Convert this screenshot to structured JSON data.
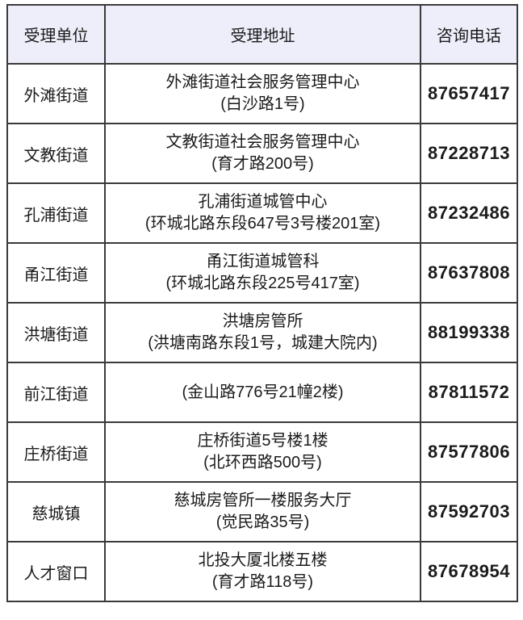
{
  "chart_data": {
    "type": "table",
    "columns": [
      "受理单位",
      "受理地址",
      "咨询电话"
    ],
    "rows": [
      {
        "unit": "外滩街道",
        "address_line1": "外滩街道社会服务管理中心",
        "address_line2": "(白沙路1号)",
        "phone": "87657417"
      },
      {
        "unit": "文教街道",
        "address_line1": "文教街道社会服务管理中心",
        "address_line2": "(育才路200号)",
        "phone": "87228713"
      },
      {
        "unit": "孔浦街道",
        "address_line1": "孔浦街道城管中心",
        "address_line2": "(环城北路东段647号3号楼201室)",
        "phone": "87232486"
      },
      {
        "unit": "甬江街道",
        "address_line1": "甬江街道城管科",
        "address_line2": "(环城北路东段225号417室)",
        "phone": "87637808"
      },
      {
        "unit": "洪塘街道",
        "address_line1": "洪塘房管所",
        "address_line2": "(洪塘南路东段1号，城建大院内)",
        "phone": "88199338"
      },
      {
        "unit": "前江街道",
        "address_line1": "(金山路776号21幢2楼)",
        "address_line2": "",
        "phone": "87811572"
      },
      {
        "unit": "庄桥街道",
        "address_line1": "庄桥街道5号楼1楼",
        "address_line2": "(北环西路500号)",
        "phone": "87577806"
      },
      {
        "unit": "慈城镇",
        "address_line1": "慈城房管所一楼服务大厅",
        "address_line2": "(觉民路35号)",
        "phone": "87592703"
      },
      {
        "unit": "人才窗口",
        "address_line1": "北投大厦北楼五楼",
        "address_line2": "(育才路118号)",
        "phone": "87678954"
      }
    ],
    "title": "",
    "layout_hints": {
      "header_background": "#edeefa",
      "border_color": "#3a3a3a",
      "text_color": "#1b1b1b",
      "grid": "on"
    }
  }
}
